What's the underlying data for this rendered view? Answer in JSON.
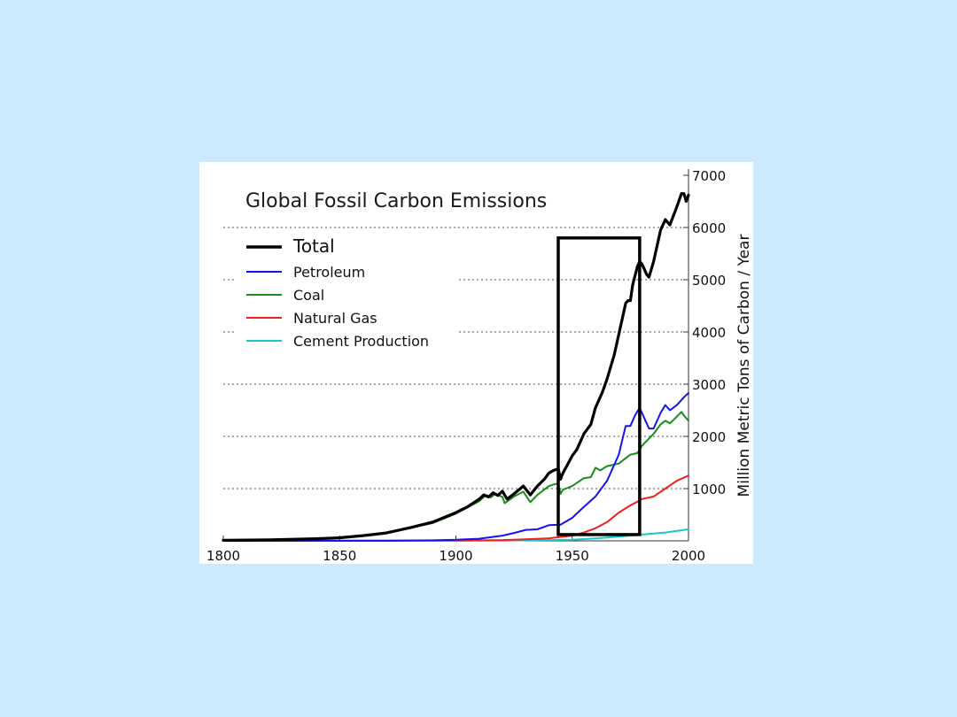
{
  "chart_data": {
    "type": "line",
    "title": "Global Fossil Carbon Emissions",
    "xlabel": "",
    "ylabel": "Million Metric Tons of Carbon / Year",
    "xlim": [
      1800,
      2000
    ],
    "ylim": [
      0,
      7000
    ],
    "x_ticks": [
      "1800",
      "1850",
      "1900",
      "1950",
      "2000"
    ],
    "y_ticks": [
      "1000",
      "2000",
      "3000",
      "4000",
      "5000",
      "6000",
      "7000"
    ],
    "grid": "horizontal dotted",
    "legend_position": "top-left",
    "annotation": {
      "type": "rectangle",
      "label": "highlight",
      "x_range": [
        1944,
        1979
      ],
      "y_range": [
        120,
        5800
      ]
    },
    "series": [
      {
        "name": "Total",
        "color": "#000000",
        "width": 3.2,
        "x": [
          1800,
          1820,
          1840,
          1850,
          1860,
          1870,
          1880,
          1890,
          1900,
          1905,
          1910,
          1912,
          1914,
          1916,
          1918,
          1920,
          1922,
          1925,
          1929,
          1932,
          1935,
          1938,
          1940,
          1942,
          1944,
          1945,
          1946,
          1948,
          1950,
          1952,
          1955,
          1958,
          1960,
          1963,
          1965,
          1968,
          1970,
          1973,
          1974,
          1975,
          1976,
          1978,
          1979,
          1980,
          1982,
          1983,
          1985,
          1988,
          1990,
          1992,
          1995,
          1997,
          1998,
          1999,
          2000
        ],
        "values": [
          10,
          20,
          40,
          60,
          100,
          150,
          250,
          360,
          540,
          650,
          800,
          880,
          840,
          920,
          870,
          950,
          800,
          900,
          1050,
          880,
          1050,
          1180,
          1300,
          1350,
          1380,
          1180,
          1300,
          1460,
          1630,
          1750,
          2050,
          2230,
          2550,
          2850,
          3100,
          3550,
          3950,
          4550,
          4600,
          4600,
          4900,
          5250,
          5350,
          5300,
          5100,
          5050,
          5350,
          5950,
          6150,
          6050,
          6400,
          6650,
          6650,
          6500,
          6620
        ]
      },
      {
        "name": "Petroleum",
        "color": "#1414f0",
        "width": 2,
        "x": [
          1800,
          1870,
          1890,
          1900,
          1910,
          1920,
          1925,
          1930,
          1935,
          1940,
          1945,
          1950,
          1955,
          1960,
          1965,
          1970,
          1973,
          1975,
          1977,
          1979,
          1980,
          1982,
          1983,
          1985,
          1988,
          1990,
          1992,
          1995,
          1998,
          2000
        ],
        "values": [
          0,
          2,
          10,
          20,
          40,
          100,
          150,
          210,
          220,
          300,
          310,
          440,
          650,
          850,
          1150,
          1650,
          2200,
          2200,
          2400,
          2550,
          2450,
          2250,
          2150,
          2150,
          2450,
          2600,
          2500,
          2600,
          2750,
          2830
        ]
      },
      {
        "name": "Coal",
        "color": "#1a8c1a",
        "width": 2,
        "x": [
          1800,
          1820,
          1840,
          1850,
          1860,
          1870,
          1880,
          1890,
          1900,
          1905,
          1910,
          1913,
          1915,
          1917,
          1920,
          1921,
          1925,
          1929,
          1932,
          1935,
          1940,
          1942,
          1944,
          1945,
          1946,
          1950,
          1955,
          1958,
          1960,
          1962,
          1965,
          1970,
          1975,
          1978,
          1980,
          1985,
          1988,
          1990,
          1992,
          1995,
          1997,
          1998,
          2000
        ],
        "values": [
          10,
          20,
          40,
          60,
          100,
          150,
          240,
          340,
          520,
          640,
          760,
          880,
          830,
          900,
          840,
          720,
          850,
          940,
          740,
          880,
          1050,
          1080,
          1100,
          900,
          980,
          1050,
          1200,
          1220,
          1400,
          1350,
          1430,
          1480,
          1650,
          1680,
          1820,
          2050,
          2230,
          2300,
          2250,
          2380,
          2470,
          2400,
          2300
        ]
      },
      {
        "name": "Natural Gas",
        "color": "#ee2020",
        "width": 2,
        "x": [
          1800,
          1900,
          1920,
          1930,
          1940,
          1950,
          1955,
          1960,
          1965,
          1970,
          1975,
          1978,
          1980,
          1985,
          1990,
          1995,
          2000
        ],
        "values": [
          0,
          5,
          15,
          30,
          50,
          100,
          160,
          240,
          360,
          540,
          680,
          750,
          800,
          850,
          1000,
          1150,
          1250
        ]
      },
      {
        "name": "Cement Production",
        "color": "#18c8c8",
        "width": 2,
        "x": [
          1800,
          1920,
          1950,
          1960,
          1970,
          1980,
          1990,
          2000
        ],
        "values": [
          0,
          5,
          20,
          45,
          80,
          120,
          160,
          220
        ]
      }
    ]
  }
}
